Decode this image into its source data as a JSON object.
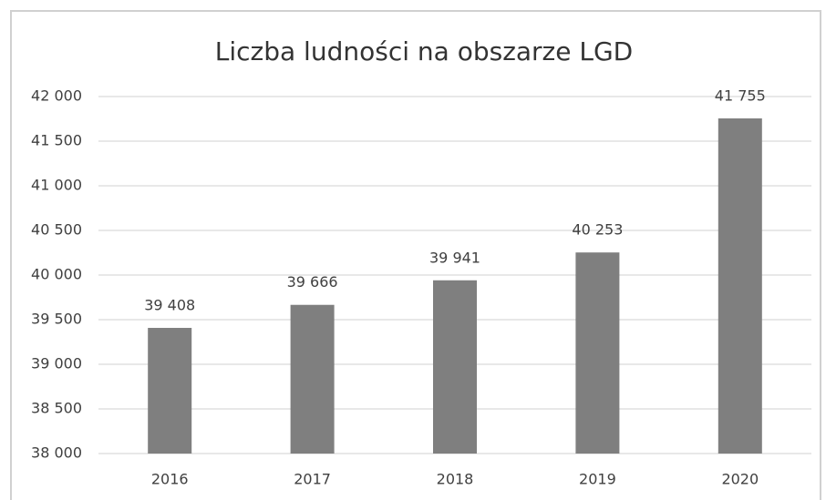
{
  "chart_data": {
    "type": "bar",
    "title": "Liczba ludności na obszarze LGD",
    "categories": [
      "2016",
      "2017",
      "2018",
      "2019",
      "2020"
    ],
    "values": [
      39408,
      39666,
      39941,
      40253,
      41755
    ],
    "value_labels": [
      "39 408",
      "39 666",
      "39 941",
      "40 253",
      "41 755"
    ],
    "color": "#7f7f7f",
    "ylim": [
      38000,
      42000
    ],
    "yticks": [
      {
        "value": 38000,
        "label": "38 000"
      },
      {
        "value": 38500,
        "label": "38 500"
      },
      {
        "value": 39000,
        "label": "39 000"
      },
      {
        "value": 39500,
        "label": "39 500"
      },
      {
        "value": 40000,
        "label": "40 000"
      },
      {
        "value": 40500,
        "label": "40 500"
      },
      {
        "value": 41000,
        "label": "41 000"
      },
      {
        "value": 41500,
        "label": "41 500"
      },
      {
        "value": 42000,
        "label": "42 000"
      }
    ],
    "grid": true
  }
}
